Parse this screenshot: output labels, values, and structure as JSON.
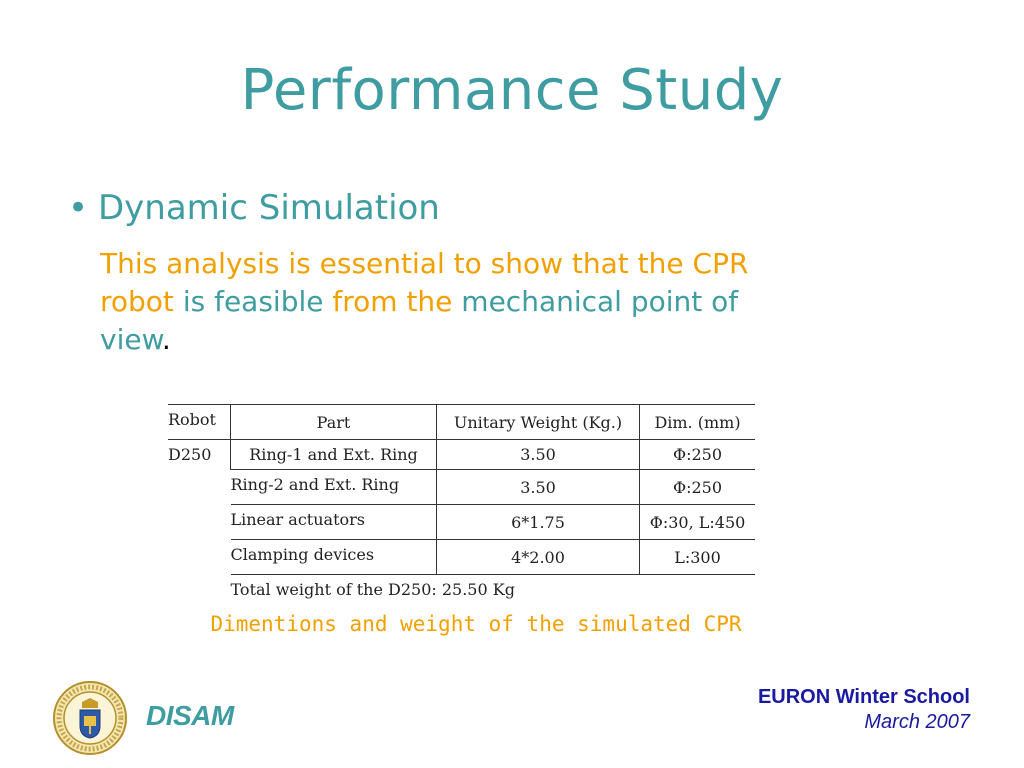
{
  "slide": {
    "title": "Performance Study",
    "bullet": "Dynamic Simulation",
    "body": {
      "p1": "This analysis is essential to show that the CPR",
      "p2a": "robot",
      "p2b": " is feasible ",
      "p2c": "from the",
      "p2d": " mechanical point of",
      "p3": "view",
      "p3end": "."
    },
    "caption": "Dimentions and weight of the simulated CPR"
  },
  "table": {
    "headers": [
      "Robot",
      "Part",
      "Unitary Weight (Kg.)",
      "Dim. (mm)"
    ],
    "robot": "D250",
    "rows": [
      [
        "Ring-1 and Ext. Ring",
        "3.50",
        "Φ:250"
      ],
      [
        "Ring-2 and Ext. Ring",
        "3.50",
        "Φ:250"
      ],
      [
        "Linear actuators",
        "6*1.75",
        "Φ:30, L:450"
      ],
      [
        "Clamping devices",
        "4*2.00",
        "L:300"
      ]
    ],
    "total": "Total weight of the D250: 25.50 Kg"
  },
  "footer": {
    "org": "DISAM",
    "event": "EURON Winter School",
    "date": "March 2007"
  },
  "colors": {
    "teal": "#3f9da1",
    "orange": "#f2a000",
    "footer_blue": "#1a1aa0"
  },
  "icons": {
    "logo": "university-seal-icon"
  }
}
